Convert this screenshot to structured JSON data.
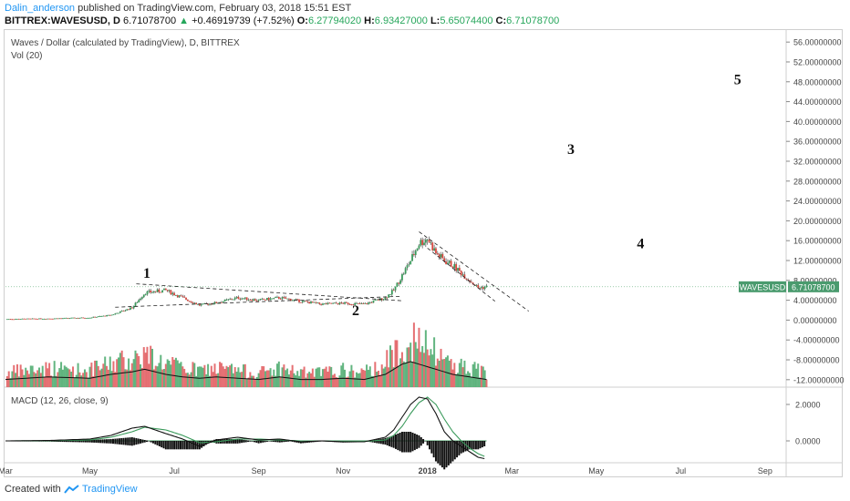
{
  "header": {
    "author": "Dalin_anderson",
    "published": "published on TradingView.com, February 03, 2018 15:51 EST"
  },
  "ticker": {
    "symbol": "BITTREX:WAVESUSD, D",
    "last": "6.71078700",
    "arrow": "▲",
    "change": "+0.46919739 (+7.52%)",
    "o_label": "O:",
    "o": "6.27794020",
    "h_label": "H:",
    "h": "6.93427000",
    "l_label": "L:",
    "l": "5.65074400",
    "c_label": "C:",
    "c": "6.71078700"
  },
  "chart_data": {
    "type": "candlestick",
    "title": "Waves / Dollar (calculated by TradingView), D, BITTREX",
    "volume_label": "Vol (20)",
    "macd_label": "MACD (12, 26, close, 9)",
    "price_tag": "WAVESUSD",
    "price_value": "6.71078700",
    "last_price": 6.71,
    "y_ticks": [
      "56.00000000",
      "52.00000000",
      "48.00000000",
      "44.00000000",
      "40.00000000",
      "36.00000000",
      "32.00000000",
      "28.00000000",
      "24.00000000",
      "20.00000000",
      "16.00000000",
      "12.00000000",
      "8.00000000",
      "4.00000000",
      "0.00000000",
      "-4.00000000",
      "-8.00000000",
      "-12.00000000"
    ],
    "y_tick_values": [
      56,
      52,
      48,
      44,
      40,
      36,
      32,
      28,
      24,
      20,
      16,
      12,
      8,
      4,
      0,
      -4,
      -8,
      -12
    ],
    "ylim": [
      -13.5,
      57.5
    ],
    "macd_ticks": [
      "2.0000",
      "0.0000"
    ],
    "macd_tick_values": [
      2,
      0
    ],
    "macd_ylim": [
      -1.2,
      2.8
    ],
    "x_labels": [
      "Mar",
      "May",
      "Jul",
      "Sep",
      "Nov",
      "2018",
      "Mar",
      "May",
      "Jul",
      "Sep"
    ],
    "x_label_months": [
      0,
      2,
      4,
      6,
      8,
      10,
      12,
      14,
      16,
      18
    ],
    "x_range_months": [
      0,
      18.5
    ],
    "price_series": {
      "months": [
        0,
        1.0,
        2.0,
        2.5,
        3.0,
        3.3,
        3.8,
        4.2,
        4.6,
        5.0,
        5.5,
        6.0,
        6.5,
        7.0,
        7.5,
        8.0,
        8.5,
        9.0,
        9.2,
        9.4,
        9.6,
        9.8,
        10.0,
        10.2,
        10.4,
        10.6,
        10.8,
        11.0,
        11.2,
        11.4
      ],
      "close": [
        0.2,
        0.3,
        0.5,
        1.0,
        2.5,
        5.5,
        6.0,
        4.5,
        3.0,
        3.5,
        4.5,
        4.0,
        4.5,
        3.8,
        3.2,
        3.4,
        3.2,
        4.5,
        6.0,
        9.0,
        12.0,
        15.5,
        16.5,
        13.5,
        12.0,
        11.0,
        9.5,
        8.0,
        6.5,
        6.7
      ]
    },
    "volume_months": [
      0,
      1.0,
      2.0,
      2.5,
      3.0,
      3.3,
      3.8,
      4.2,
      4.6,
      5.0,
      5.5,
      6.0,
      6.5,
      7.0,
      7.5,
      8.0,
      8.5,
      9.0,
      9.2,
      9.4,
      9.6,
      9.8,
      10.0,
      10.2,
      10.4,
      10.6,
      10.8,
      11.0,
      11.2,
      11.4
    ],
    "volume": [
      0.3,
      0.4,
      0.35,
      0.5,
      0.6,
      0.7,
      0.5,
      0.4,
      0.35,
      0.4,
      0.35,
      0.3,
      0.4,
      0.3,
      0.3,
      0.35,
      0.3,
      0.5,
      0.7,
      0.9,
      1.0,
      0.9,
      0.8,
      0.7,
      0.6,
      0.5,
      0.45,
      0.4,
      0.35,
      0.3
    ],
    "macd": [
      0.0,
      0.02,
      0.1,
      0.3,
      0.7,
      0.8,
      0.4,
      0.1,
      -0.3,
      0.05,
      0.2,
      0.05,
      0.1,
      -0.05,
      0.0,
      -0.05,
      -0.05,
      0.2,
      0.6,
      1.3,
      2.0,
      2.4,
      2.3,
      1.5,
      0.5,
      0.0,
      -0.3,
      -0.6,
      -0.9,
      -1.0
    ],
    "signal": [
      0.0,
      0.01,
      0.05,
      0.2,
      0.5,
      0.75,
      0.6,
      0.3,
      -0.1,
      -0.05,
      0.1,
      0.1,
      0.05,
      0.0,
      0.0,
      -0.02,
      -0.03,
      0.05,
      0.3,
      0.8,
      1.5,
      2.1,
      2.4,
      2.0,
      1.2,
      0.5,
      0.0,
      -0.4,
      -0.7,
      -0.9
    ],
    "wave_labels": [
      {
        "text": "1",
        "month": 3.35,
        "price": 8.5
      },
      {
        "text": "2",
        "month": 8.3,
        "price": 1.0
      },
      {
        "text": "3",
        "month": 13.4,
        "price": 33.5
      },
      {
        "text": "4",
        "month": 15.05,
        "price": 14.5
      },
      {
        "text": "5",
        "month": 17.35,
        "price": 47.5
      }
    ]
  }
}
